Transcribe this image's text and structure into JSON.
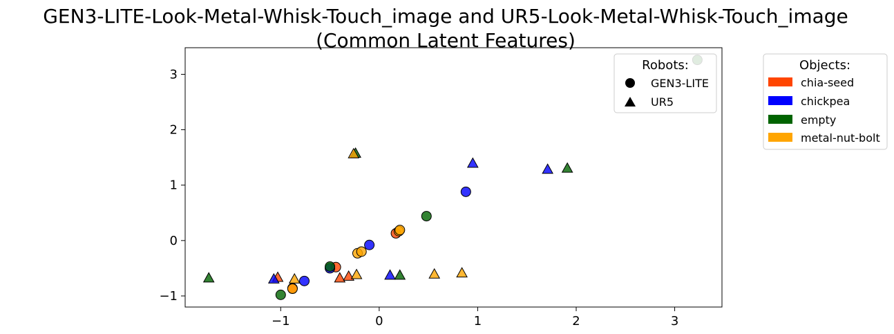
{
  "chart_data": {
    "type": "scatter",
    "title_line1": "GEN3-LITE-Look-Metal-Whisk-Touch_image and UR5-Look-Metal-Whisk-Touch_image",
    "title_line2": "(Common Latent Features)",
    "xlabel": "",
    "ylabel": "",
    "xlim": [
      -1.97,
      3.48
    ],
    "ylim": [
      -1.2,
      3.48
    ],
    "xticks": [
      -1,
      0,
      1,
      2,
      3
    ],
    "yticks": [
      -1,
      0,
      1,
      2,
      3
    ],
    "xtick_labels": [
      "−1",
      "0",
      "1",
      "2",
      "3"
    ],
    "ytick_labels": [
      "−1",
      "0",
      "1",
      "2",
      "3"
    ],
    "grid": false,
    "legend_robots": {
      "title": "Robots:",
      "placement": "top-right inside plot",
      "entries": [
        {
          "label": "GEN3-LITE",
          "marker": "circle"
        },
        {
          "label": "UR5",
          "marker": "triangle"
        }
      ]
    },
    "legend_objects": {
      "title": "Objects:",
      "placement": "outside right",
      "entries": [
        {
          "label": "chia-seed",
          "color": "#ff4500"
        },
        {
          "label": "chickpea",
          "color": "#0000ff"
        },
        {
          "label": "empty",
          "color": "#006400"
        },
        {
          "label": "metal-nut-bolt",
          "color": "#ffa500"
        }
      ]
    },
    "points": [
      {
        "x": -0.44,
        "y": -0.48,
        "robot": "GEN3-LITE",
        "object": "chia-seed"
      },
      {
        "x": 0.17,
        "y": 0.13,
        "robot": "GEN3-LITE",
        "object": "chia-seed"
      },
      {
        "x": -0.88,
        "y": -0.86,
        "robot": "GEN3-LITE",
        "object": "chia-seed"
      },
      {
        "x": -0.76,
        "y": -0.73,
        "robot": "GEN3-LITE",
        "object": "chickpea"
      },
      {
        "x": -0.5,
        "y": -0.5,
        "robot": "GEN3-LITE",
        "object": "chickpea"
      },
      {
        "x": -0.1,
        "y": -0.08,
        "robot": "GEN3-LITE",
        "object": "chickpea"
      },
      {
        "x": 0.88,
        "y": 0.88,
        "robot": "GEN3-LITE",
        "object": "chickpea"
      },
      {
        "x": -1.0,
        "y": -0.98,
        "robot": "GEN3-LITE",
        "object": "empty"
      },
      {
        "x": -0.5,
        "y": -0.47,
        "robot": "GEN3-LITE",
        "object": "empty"
      },
      {
        "x": 0.48,
        "y": 0.44,
        "robot": "GEN3-LITE",
        "object": "empty"
      },
      {
        "x": 3.23,
        "y": 3.26,
        "robot": "GEN3-LITE",
        "object": "empty"
      },
      {
        "x": -0.88,
        "y": -0.87,
        "robot": "GEN3-LITE",
        "object": "metal-nut-bolt"
      },
      {
        "x": -0.22,
        "y": -0.23,
        "robot": "GEN3-LITE",
        "object": "metal-nut-bolt"
      },
      {
        "x": -0.18,
        "y": -0.2,
        "robot": "GEN3-LITE",
        "object": "metal-nut-bolt"
      },
      {
        "x": 0.2,
        "y": 0.17,
        "robot": "GEN3-LITE",
        "object": "metal-nut-bolt"
      },
      {
        "x": 0.21,
        "y": 0.19,
        "robot": "GEN3-LITE",
        "object": "metal-nut-bolt"
      },
      {
        "x": -1.03,
        "y": -0.67,
        "robot": "UR5",
        "object": "chia-seed"
      },
      {
        "x": -0.4,
        "y": -0.68,
        "robot": "UR5",
        "object": "chia-seed"
      },
      {
        "x": -0.31,
        "y": -0.65,
        "robot": "UR5",
        "object": "chia-seed"
      },
      {
        "x": -1.07,
        "y": -0.7,
        "robot": "UR5",
        "object": "chickpea"
      },
      {
        "x": 0.11,
        "y": -0.63,
        "robot": "UR5",
        "object": "chickpea"
      },
      {
        "x": 0.95,
        "y": 1.39,
        "robot": "UR5",
        "object": "chickpea"
      },
      {
        "x": 1.71,
        "y": 1.28,
        "robot": "UR5",
        "object": "chickpea"
      },
      {
        "x": -1.73,
        "y": -0.68,
        "robot": "UR5",
        "object": "empty"
      },
      {
        "x": -0.24,
        "y": 1.57,
        "robot": "UR5",
        "object": "empty"
      },
      {
        "x": 0.21,
        "y": -0.63,
        "robot": "UR5",
        "object": "empty"
      },
      {
        "x": 1.91,
        "y": 1.3,
        "robot": "UR5",
        "object": "empty"
      },
      {
        "x": -0.86,
        "y": -0.7,
        "robot": "UR5",
        "object": "metal-nut-bolt"
      },
      {
        "x": -0.26,
        "y": 1.56,
        "robot": "UR5",
        "object": "metal-nut-bolt"
      },
      {
        "x": -0.23,
        "y": -0.62,
        "robot": "UR5",
        "object": "metal-nut-bolt"
      },
      {
        "x": 0.56,
        "y": -0.61,
        "robot": "UR5",
        "object": "metal-nut-bolt"
      },
      {
        "x": 0.84,
        "y": -0.59,
        "robot": "UR5",
        "object": "metal-nut-bolt"
      }
    ]
  }
}
